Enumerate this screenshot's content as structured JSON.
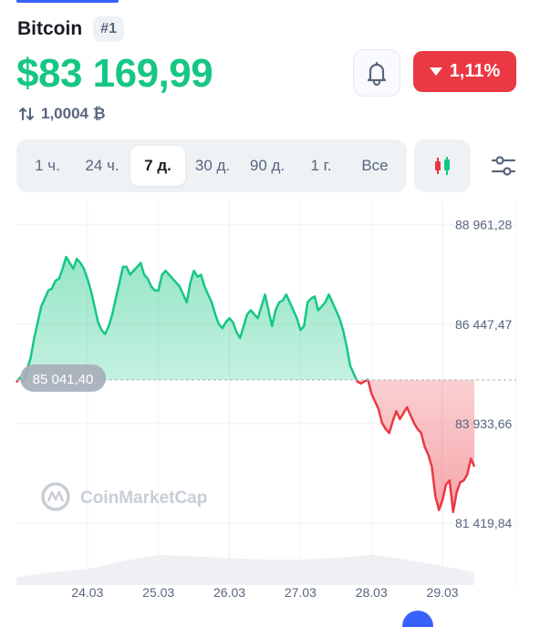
{
  "coin": {
    "name": "Bitcoin",
    "rank": "#1"
  },
  "price": "$83 169,99",
  "btc_rate": "1,0004 ₿",
  "change": {
    "direction": "down",
    "value": "1,11%",
    "color": "#ea3943"
  },
  "tabs": [
    {
      "label": "1 ч.",
      "active": false
    },
    {
      "label": "24 ч.",
      "active": false
    },
    {
      "label": "7 д.",
      "active": true
    },
    {
      "label": "30 д.",
      "active": false
    },
    {
      "label": "90 д.",
      "active": false
    },
    {
      "label": "1 г.",
      "active": false
    },
    {
      "label": "Все",
      "active": false
    }
  ],
  "icons": {
    "alert": "bell-icon",
    "chart_type": "candlestick-icon",
    "settings": "sliders-icon",
    "swap": "swap-arrows-icon"
  },
  "colors": {
    "up": "#16c784",
    "down": "#ea3943",
    "accent": "#3861fb"
  },
  "chart_data": {
    "type": "line",
    "xlabel": "",
    "ylabel": "",
    "x_ticks": [
      "24.03",
      "25.03",
      "26.03",
      "27.03",
      "28.03",
      "29.03"
    ],
    "y_ticks": [
      "88 961,28",
      "86 447,47",
      "83 933,66",
      "81 419,84"
    ],
    "y_tick_values": [
      88961.28,
      86447.47,
      83933.66,
      81419.84
    ],
    "ylim": [
      80500,
      89300
    ],
    "baseline_label": "85 041,40",
    "baseline_value": 85041.4,
    "watermark": "CoinMarketCap",
    "x_range_days": [
      23.0,
      29.5
    ],
    "series": [
      {
        "x": [
          23.0,
          23.05,
          23.1,
          23.15,
          23.2,
          23.25,
          23.3,
          23.35,
          23.4,
          23.45,
          23.5,
          23.55,
          23.6,
          23.65,
          23.7,
          23.75,
          23.8,
          23.85,
          23.9,
          23.95,
          24.0,
          24.05,
          24.1,
          24.15,
          24.2,
          24.25,
          24.3,
          24.35,
          24.4,
          24.45,
          24.5,
          24.55,
          24.6,
          24.65,
          24.7,
          24.75,
          24.8,
          24.85,
          24.9,
          24.95,
          25.0,
          25.05,
          25.1,
          25.15,
          25.2,
          25.25,
          25.3,
          25.35,
          25.4,
          25.45,
          25.5,
          25.55,
          25.6,
          25.65,
          25.7,
          25.75,
          25.8,
          25.85,
          25.9,
          25.95,
          26.0,
          26.05,
          26.1,
          26.15,
          26.2,
          26.25,
          26.3,
          26.35,
          26.4,
          26.45,
          26.5,
          26.55,
          26.6,
          26.65,
          26.7,
          26.75,
          26.8,
          26.85,
          26.9,
          26.95,
          27.0,
          27.05,
          27.1,
          27.15,
          27.2,
          27.25,
          27.3,
          27.35,
          27.4,
          27.45,
          27.5,
          27.55,
          27.6,
          27.65,
          27.7,
          27.75,
          27.8,
          27.85,
          27.9,
          27.95,
          28.0,
          28.05,
          28.1,
          28.15,
          28.2,
          28.25,
          28.3,
          28.35,
          28.4,
          28.45,
          28.5,
          28.55,
          28.6,
          28.65,
          28.7,
          28.75,
          28.8,
          28.85,
          28.9,
          28.95,
          29.0,
          29.05,
          29.1,
          29.15,
          29.2,
          29.25,
          29.3,
          29.35,
          29.4,
          29.45
        ],
        "y": [
          84980,
          85100,
          85000,
          85300,
          85600,
          86100,
          86500,
          86900,
          87100,
          87300,
          87350,
          87550,
          87600,
          87850,
          88150,
          88000,
          87850,
          88100,
          88000,
          87850,
          87600,
          87300,
          86900,
          86500,
          86300,
          86200,
          86400,
          86700,
          87100,
          87500,
          87900,
          87900,
          87700,
          87800,
          87900,
          88000,
          87700,
          87600,
          87400,
          87300,
          87300,
          87700,
          87800,
          87700,
          87600,
          87500,
          87400,
          87200,
          87000,
          87500,
          87800,
          87650,
          87700,
          87400,
          87200,
          87000,
          86700,
          86450,
          86350,
          86500,
          86600,
          86500,
          86250,
          86100,
          86400,
          86700,
          86800,
          86700,
          86600,
          86900,
          87200,
          86800,
          86400,
          86800,
          87000,
          87050,
          87200,
          87000,
          86800,
          86600,
          86300,
          86400,
          87000,
          87100,
          87150,
          86800,
          86900,
          87000,
          87200,
          87000,
          86800,
          86600,
          86300,
          85900,
          85400,
          85200,
          85000,
          84950,
          85000,
          85050,
          84700,
          84500,
          84300,
          83950,
          83800,
          83700,
          84000,
          84250,
          84050,
          84200,
          84350,
          84150,
          83950,
          83800,
          83700,
          83350,
          83150,
          82850,
          82100,
          81750,
          82000,
          82400,
          82500,
          81700,
          82200,
          82450,
          82500,
          82650,
          83050,
          82850
        ],
        "split_at": "baseline_value"
      }
    ],
    "volume": {
      "x": [
        23.0,
        23.5,
        24.0,
        24.5,
        25.0,
        25.5,
        26.0,
        26.5,
        27.0,
        27.5,
        28.0,
        28.5,
        29.0,
        29.45
      ],
      "y": [
        0.25,
        0.4,
        0.5,
        0.75,
        0.95,
        0.9,
        0.85,
        0.8,
        0.8,
        0.85,
        0.95,
        0.8,
        0.6,
        0.4
      ]
    }
  }
}
